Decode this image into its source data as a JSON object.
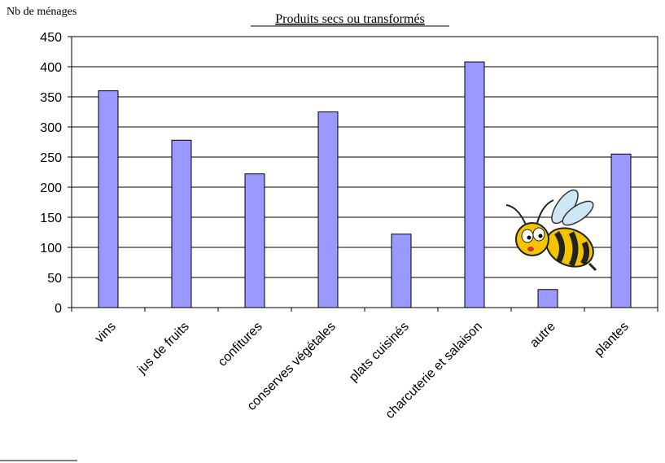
{
  "chart_data": {
    "type": "bar",
    "title": "Produits secs ou transformés",
    "y_axis_label": "Nb de ménages",
    "categories": [
      "vins",
      "jus de fruits",
      "confitures",
      "conserves végétales",
      "plats cuisinés",
      "charcuterie et salaison",
      "autre",
      "plantes"
    ],
    "values": [
      360,
      278,
      222,
      325,
      122,
      408,
      30,
      255
    ],
    "color": "#9999ff",
    "ylim": [
      0,
      450
    ],
    "yticks": [
      0,
      50,
      100,
      150,
      200,
      250,
      300,
      350,
      400,
      450
    ],
    "grid": true
  }
}
